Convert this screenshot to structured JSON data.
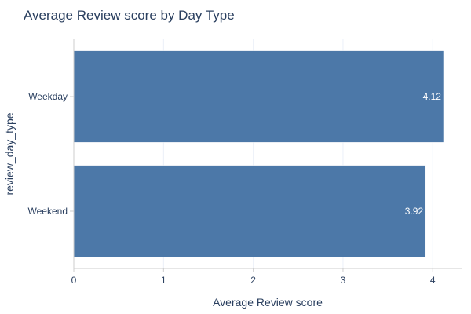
{
  "chart_data": {
    "type": "bar",
    "orientation": "horizontal",
    "title": "Average Review score by Day Type",
    "xlabel": "Average Review score",
    "ylabel": "review_day_type",
    "categories": [
      "Weekday",
      "Weekend"
    ],
    "values": [
      4.12,
      3.92
    ],
    "value_labels": [
      "4.12",
      "3.92"
    ],
    "xlim": [
      0,
      4.33
    ],
    "xticks": [
      0,
      1,
      2,
      3,
      4
    ],
    "xtick_labels": [
      "0",
      "1",
      "2",
      "3",
      "4"
    ],
    "grid": true,
    "bar_color": "#4c78a8"
  }
}
